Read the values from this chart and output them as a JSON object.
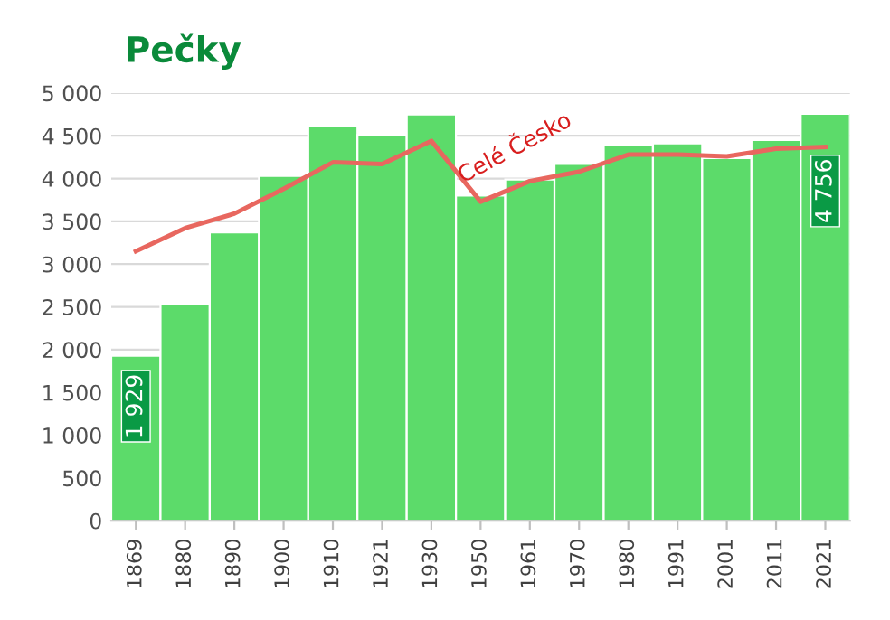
{
  "chart_data": {
    "type": "bar",
    "title": "Pečky",
    "categories": [
      "1869",
      "1880",
      "1890",
      "1900",
      "1910",
      "1921",
      "1930",
      "1950",
      "1961",
      "1970",
      "1980",
      "1991",
      "2001",
      "2011",
      "2021"
    ],
    "series": [
      {
        "color": "#5cdb6a",
        "values": [
          1929,
          2530,
          3370,
          4030,
          4620,
          4510,
          4750,
          3800,
          3990,
          4170,
          4390,
          4410,
          4240,
          4450,
          4756
        ],
        "value_labels": [
          "1 929",
          null,
          null,
          null,
          null,
          null,
          null,
          null,
          null,
          null,
          null,
          null,
          null,
          null,
          "4 756"
        ]
      },
      {
        "type": "line",
        "name": "Celé Česko",
        "color": "#e8675f",
        "values": [
          3150,
          3420,
          3590,
          3880,
          4190,
          4170,
          4440,
          3730,
          3970,
          4080,
          4280,
          4280,
          4260,
          4350,
          4370
        ]
      }
    ],
    "ylim": [
      0,
      5000
    ],
    "yticks": [
      0,
      {
        "value": 500,
        "label": "500"
      },
      {
        "value": 1000,
        "label": "1 000"
      },
      {
        "value": 1500,
        "label": "1 500"
      },
      {
        "value": 2000,
        "label": "2 000"
      },
      {
        "value": 2500,
        "label": "2 500"
      },
      {
        "value": 3000,
        "label": "3 000"
      },
      {
        "value": 3500,
        "label": "3 500"
      },
      {
        "value": 4000,
        "label": "4 000"
      },
      {
        "value": 4500,
        "label": "4 500"
      },
      {
        "value": 5000,
        "label": "5 000"
      }
    ],
    "grid": "y",
    "legend": false
  }
}
